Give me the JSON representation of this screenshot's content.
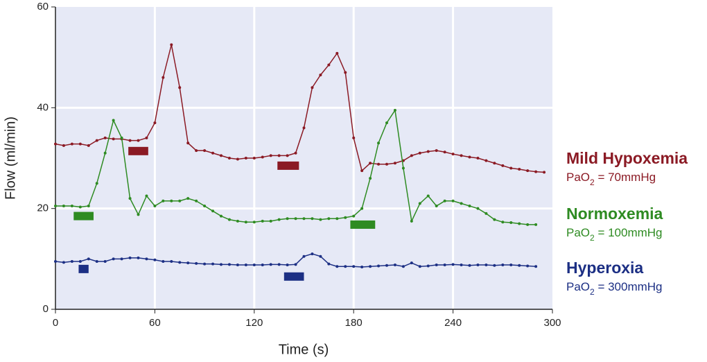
{
  "chart_data": {
    "type": "line",
    "x_label": "Time (s)",
    "y_label": "Flow (ml/min)",
    "xlim": [
      0,
      300
    ],
    "xticks": [
      0,
      60,
      120,
      180,
      240,
      300
    ],
    "ylim": [
      0,
      60
    ],
    "yticks": [
      0,
      20,
      40,
      60
    ],
    "grid": true,
    "x": [
      0,
      5,
      10,
      15,
      20,
      25,
      30,
      35,
      40,
      45,
      50,
      55,
      60,
      65,
      70,
      75,
      80,
      85,
      90,
      95,
      100,
      105,
      110,
      115,
      120,
      125,
      130,
      135,
      140,
      145,
      150,
      155,
      160,
      165,
      170,
      175,
      180,
      185,
      190,
      195,
      200,
      205,
      210,
      215,
      220,
      225,
      230,
      235,
      240,
      245,
      250,
      255,
      260,
      265,
      270,
      275,
      280,
      285,
      290,
      295
    ],
    "series": [
      {
        "name": "Mild Hypoxemia",
        "note": {
          "base": "PaO",
          "sub": "2",
          "rest": " = 70mmHg"
        },
        "color": "#8b1a24",
        "values": [
          32.8,
          32.5,
          32.8,
          32.8,
          32.5,
          33.5,
          34,
          33.8,
          33.8,
          33.5,
          33.5,
          34,
          37,
          46,
          52.5,
          44,
          33,
          31.5,
          31.5,
          31,
          30.5,
          30,
          29.8,
          30,
          30,
          30.2,
          30.5,
          30.5,
          30.5,
          31,
          36,
          44,
          46.5,
          48.5,
          50.8,
          47,
          34,
          27.5,
          29,
          28.8,
          28.8,
          29,
          29.5,
          30.5,
          31,
          31.3,
          31.5,
          31.2,
          30.8,
          30.5,
          30.2,
          30,
          29.5,
          29,
          28.5,
          28,
          27.8,
          27.5,
          27.3,
          27.2
        ],
        "stimuli": [
          {
            "start": 44,
            "end": 56,
            "y": 31.4
          },
          {
            "start": 134,
            "end": 147,
            "y": 28.5
          }
        ]
      },
      {
        "name": "Normoxemia",
        "note": {
          "base": "PaO",
          "sub": "2",
          "rest": " = 100mmHg"
        },
        "color": "#2e8b22",
        "values": [
          20.5,
          20.5,
          20.5,
          20.3,
          20.5,
          25,
          31,
          37.5,
          34,
          22,
          18.8,
          22.5,
          20.5,
          21.5,
          21.5,
          21.5,
          22,
          21.5,
          20.5,
          19.5,
          18.5,
          17.8,
          17.5,
          17.3,
          17.3,
          17.5,
          17.5,
          17.8,
          18,
          18,
          18,
          18,
          17.8,
          18,
          18,
          18.2,
          18.5,
          20,
          26,
          33,
          37,
          39.5,
          28,
          17.5,
          21,
          22.5,
          20.5,
          21.5,
          21.5,
          21,
          20.5,
          20,
          19,
          17.8,
          17.3,
          17.2,
          17,
          16.8,
          16.8,
          null
        ],
        "stimuli": [
          {
            "start": 11,
            "end": 23,
            "y": 18.5
          },
          {
            "start": 178,
            "end": 193,
            "y": 16.8
          }
        ]
      },
      {
        "name": "Hyperoxia",
        "note": {
          "base": "PaO",
          "sub": "2",
          "rest": " = 300mmHg"
        },
        "color": "#1c2f84",
        "values": [
          9.5,
          9.3,
          9.5,
          9.5,
          10,
          9.5,
          9.5,
          10,
          10,
          10.2,
          10.2,
          10,
          9.8,
          9.5,
          9.5,
          9.3,
          9.2,
          9.1,
          9,
          9,
          8.9,
          8.9,
          8.8,
          8.8,
          8.8,
          8.8,
          8.9,
          8.9,
          8.8,
          8.9,
          10.5,
          11,
          10.5,
          9,
          8.5,
          8.5,
          8.5,
          8.4,
          8.5,
          8.6,
          8.7,
          8.8,
          8.5,
          9.2,
          8.5,
          8.6,
          8.8,
          8.8,
          8.9,
          8.8,
          8.7,
          8.8,
          8.8,
          8.7,
          8.8,
          8.8,
          8.7,
          8.6,
          8.5,
          null
        ],
        "stimuli": [
          {
            "start": 14,
            "end": 20,
            "y": 8
          },
          {
            "start": 138,
            "end": 150,
            "y": 6.5
          }
        ]
      }
    ]
  }
}
